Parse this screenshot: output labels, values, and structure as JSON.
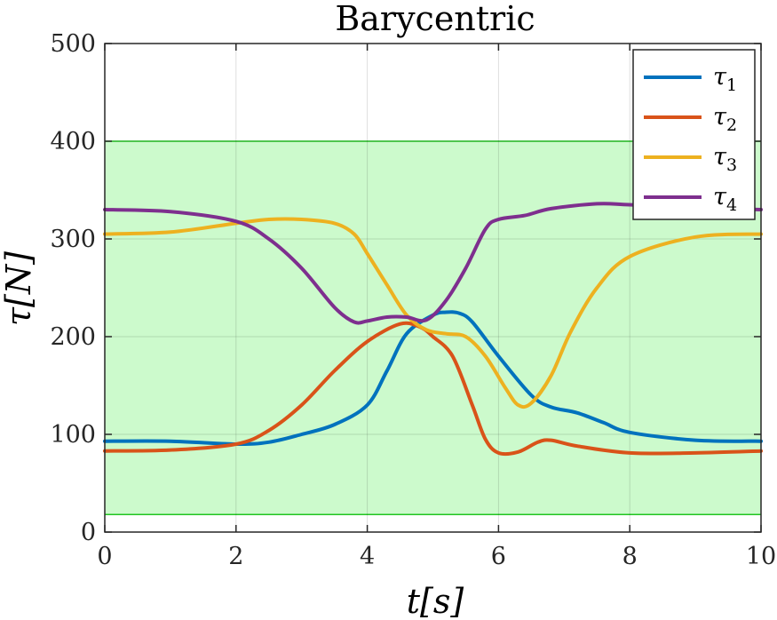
{
  "chart_data": {
    "type": "line",
    "title": "Barycentric",
    "xlabel": "t[s]",
    "ylabel": "τ[N]",
    "xlim": [
      0,
      10
    ],
    "ylim": [
      0,
      500
    ],
    "x_ticks": [
      "0",
      "2",
      "4",
      "6",
      "8",
      "10"
    ],
    "y_ticks": [
      "0",
      "100",
      "200",
      "300",
      "400",
      "500"
    ],
    "grid": true,
    "legend_position": "top-right",
    "feasible_band": {
      "lower": 18,
      "upper": 400,
      "fill": "#ccfacc",
      "edge": "#22c522"
    },
    "series": [
      {
        "name": "τ1",
        "color": "#0072bd",
        "x": [
          0,
          1,
          2,
          2.5,
          3,
          3.5,
          4,
          4.3,
          4.6,
          5,
          5.2,
          5.4,
          5.6,
          6,
          6.5,
          6.8,
          7.2,
          7.6,
          8,
          9,
          10
        ],
        "y": [
          93,
          93,
          90,
          92,
          100,
          110,
          130,
          165,
          203,
          222,
          225,
          224,
          215,
          180,
          140,
          128,
          122,
          112,
          102,
          94,
          93
        ]
      },
      {
        "name": "τ2",
        "color": "#d95319",
        "x": [
          0,
          1,
          2,
          2.5,
          3,
          3.5,
          4,
          4.5,
          4.8,
          5,
          5.3,
          5.6,
          5.8,
          6,
          6.3,
          6.6,
          6.8,
          7.2,
          8,
          9,
          10
        ],
        "y": [
          83,
          84,
          90,
          104,
          130,
          165,
          195,
          213,
          210,
          200,
          180,
          130,
          95,
          81,
          82,
          92,
          94,
          88,
          81,
          81,
          83
        ]
      },
      {
        "name": "τ3",
        "color": "#edb120",
        "x": [
          0,
          1,
          2,
          2.5,
          3,
          3.5,
          3.8,
          4,
          4.3,
          4.6,
          4.9,
          5.2,
          5.5,
          5.8,
          6.1,
          6.3,
          6.5,
          6.8,
          7.1,
          7.5,
          8,
          9,
          10
        ],
        "y": [
          305,
          307,
          316,
          320,
          320,
          316,
          305,
          285,
          253,
          222,
          207,
          203,
          200,
          180,
          148,
          130,
          132,
          160,
          205,
          250,
          282,
          302,
          305
        ]
      },
      {
        "name": "τ4",
        "color": "#7e2f8e",
        "x": [
          0,
          1,
          2,
          2.5,
          3,
          3.5,
          3.8,
          4,
          4.3,
          4.6,
          4.9,
          5.2,
          5.5,
          5.8,
          6,
          6.4,
          6.8,
          7.5,
          8,
          9,
          10
        ],
        "y": [
          330,
          328,
          318,
          300,
          270,
          230,
          215,
          216,
          220,
          220,
          217,
          237,
          270,
          310,
          320,
          324,
          331,
          336,
          335,
          332,
          330
        ]
      }
    ]
  }
}
